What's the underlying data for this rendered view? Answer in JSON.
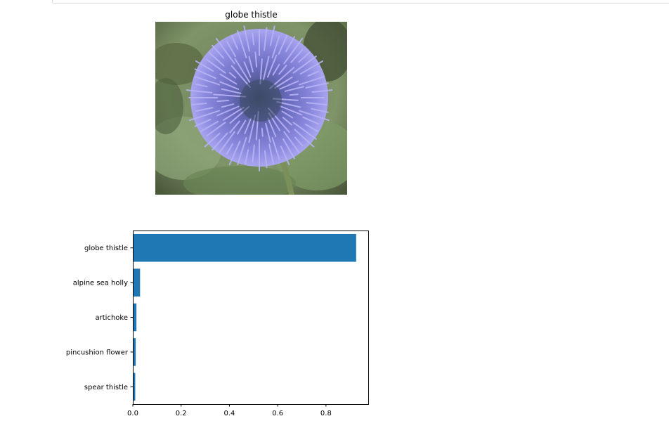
{
  "image_panel": {
    "title": "globe thistle",
    "photo_subject": "globe thistle flower photo"
  },
  "chart_data": {
    "type": "bar",
    "orientation": "horizontal",
    "categories": [
      "globe thistle",
      "alpine sea holly",
      "artichoke",
      "pincushion flower",
      "spear thistle"
    ],
    "values": [
      0.925,
      0.03,
      0.015,
      0.012,
      0.01
    ],
    "title": "",
    "xlabel": "",
    "ylabel": "",
    "xlim": [
      0,
      0.975
    ],
    "xticks": [
      0.0,
      0.2,
      0.4,
      0.6,
      0.8
    ],
    "xtick_labels": [
      "0.0",
      "0.2",
      "0.4",
      "0.6",
      "0.8"
    ],
    "grid": false,
    "bar_color": "#1f77b4"
  },
  "colors": {
    "bar": "#1f77b4",
    "axes": "#000000"
  }
}
